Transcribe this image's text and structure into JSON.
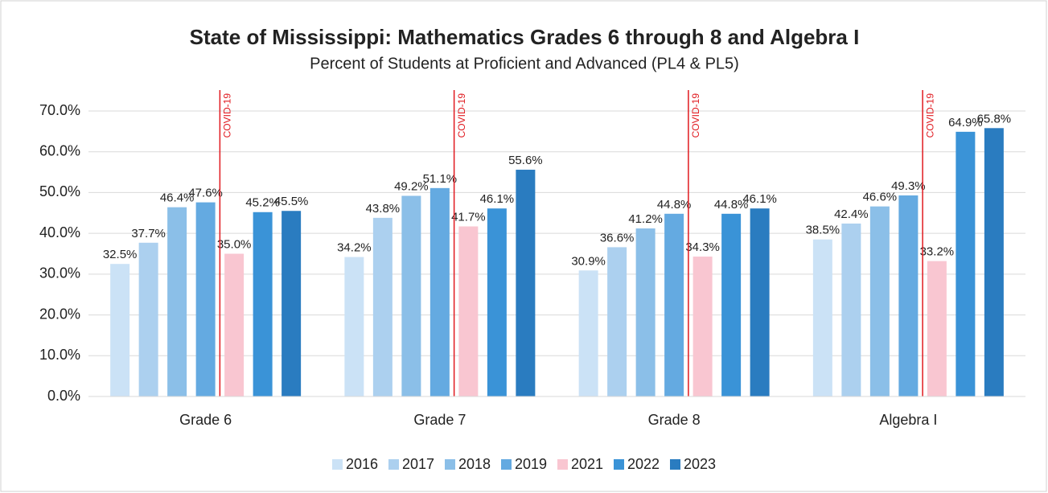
{
  "chart_data": {
    "type": "bar",
    "title": "State of Mississippi: Mathematics Grades 6 through 8 and Algebra I",
    "subtitle": "Percent of Students at Proficient and Advanced (PL4 & PL5)",
    "categories": [
      "Grade 6",
      "Grade 7",
      "Grade 8",
      "Algebra I"
    ],
    "series": [
      {
        "name": "2016",
        "color": "#cbe2f6",
        "values": [
          32.5,
          34.2,
          30.9,
          38.5
        ],
        "value_labels": [
          "32.5%",
          "34.2%",
          "30.9%",
          "38.5%"
        ]
      },
      {
        "name": "2017",
        "color": "#acd0ef",
        "values": [
          37.7,
          43.8,
          36.6,
          42.4
        ],
        "value_labels": [
          "37.7%",
          "43.8%",
          "36.6%",
          "42.4%"
        ]
      },
      {
        "name": "2018",
        "color": "#8bbfe8",
        "values": [
          46.4,
          49.2,
          41.2,
          46.6
        ],
        "value_labels": [
          "46.4%",
          "49.2%",
          "41.2%",
          "46.6%"
        ]
      },
      {
        "name": "2019",
        "color": "#64aae1",
        "values": [
          47.6,
          51.1,
          44.8,
          49.3
        ],
        "value_labels": [
          "47.6%",
          "51.1%",
          "44.8%",
          "49.3%"
        ]
      },
      {
        "name": "2021",
        "color": "#f9c6d1",
        "values": [
          35.0,
          41.7,
          34.3,
          33.2
        ],
        "value_labels": [
          "35.0%",
          "41.7%",
          "34.3%",
          "33.2%"
        ]
      },
      {
        "name": "2022",
        "color": "#3a93d7",
        "values": [
          45.2,
          46.1,
          44.8,
          64.9
        ],
        "value_labels": [
          "45.2%",
          "46.1%",
          "44.8%",
          "64.9%"
        ]
      },
      {
        "name": "2023",
        "color": "#2a7cc0",
        "values": [
          45.5,
          55.6,
          46.1,
          65.8
        ],
        "value_labels": [
          "45.5%",
          "55.6%",
          "46.1%",
          "65.8%"
        ]
      }
    ],
    "ylim": [
      0,
      70
    ],
    "yticks": [
      {
        "value": 0,
        "label": "0.0%"
      },
      {
        "value": 10,
        "label": "10.0%"
      },
      {
        "value": 20,
        "label": "20.0%"
      },
      {
        "value": 30,
        "label": "30.0%"
      },
      {
        "value": 40,
        "label": "40.0%"
      },
      {
        "value": 50,
        "label": "50.0%"
      },
      {
        "value": 60,
        "label": "60.0%"
      },
      {
        "value": 70,
        "label": "70.0%"
      }
    ],
    "grid": true,
    "legend": "bottom",
    "annotation": {
      "text": "COVID-19",
      "color": "#e0191f"
    }
  }
}
